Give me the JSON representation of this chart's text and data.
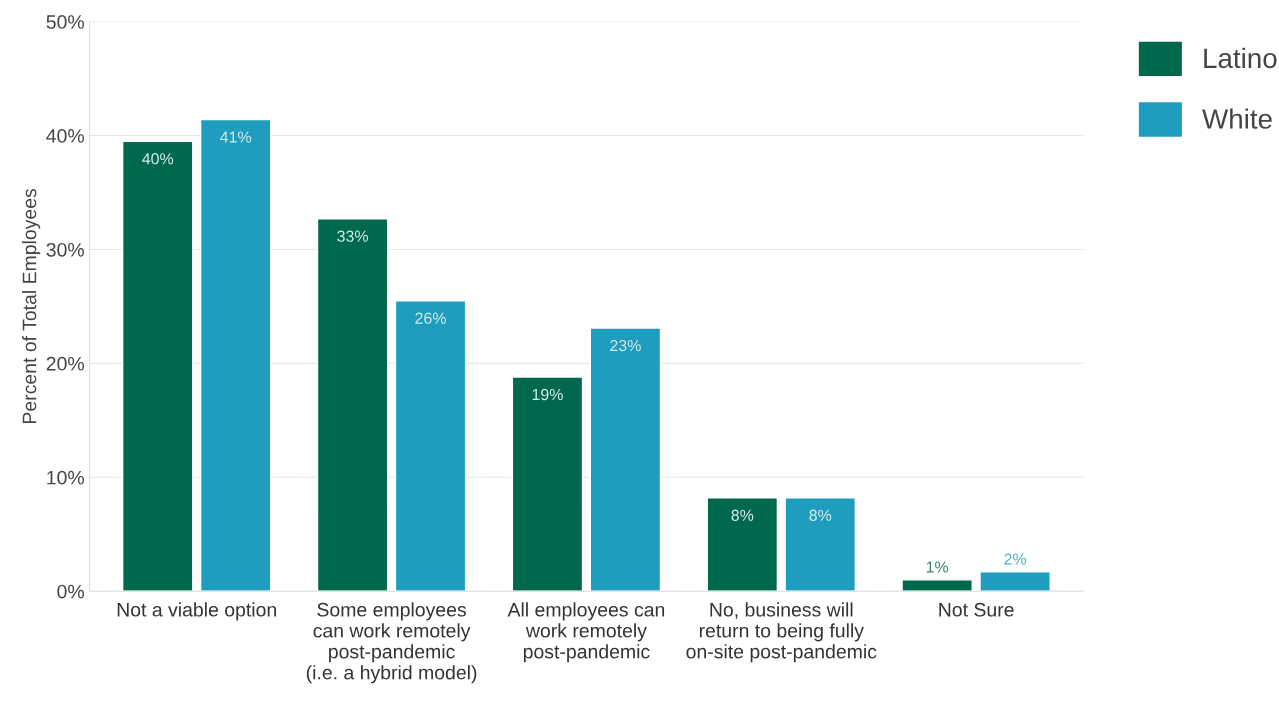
{
  "chart_data": {
    "type": "bar",
    "categories": [
      "Not a viable option",
      "Some employees\ncan work remotely\npost-pandemic\n(i.e. a hybrid model)",
      "All employees can\nwork remotely\npost-pandemic",
      "No, business will\nreturn to being fully\non-site post-pandemic",
      "Not Sure"
    ],
    "series": [
      {
        "name": "Latino",
        "color": "#00694d",
        "values": [
          39.5,
          32.7,
          18.8,
          8.2,
          1.0
        ],
        "value_labels": [
          "40%",
          "33%",
          "19%",
          "8%",
          "1%"
        ]
      },
      {
        "name": "White",
        "color": "#1e9dbe",
        "values": [
          41.4,
          25.5,
          23.1,
          8.2,
          1.7
        ],
        "value_labels": [
          "41%",
          "26%",
          "23%",
          "8%",
          "2%"
        ]
      }
    ],
    "ylabel": "Percent of Total Employees",
    "ylim": [
      0,
      50
    ],
    "yticks": [
      {
        "value": 0,
        "label": "0%"
      },
      {
        "value": 10,
        "label": "10%"
      },
      {
        "value": 20,
        "label": "20%"
      },
      {
        "value": 30,
        "label": "30%"
      },
      {
        "value": 40,
        "label": "40%"
      },
      {
        "value": 50,
        "label": "50%"
      }
    ],
    "grid": "y",
    "legend": "top right"
  }
}
